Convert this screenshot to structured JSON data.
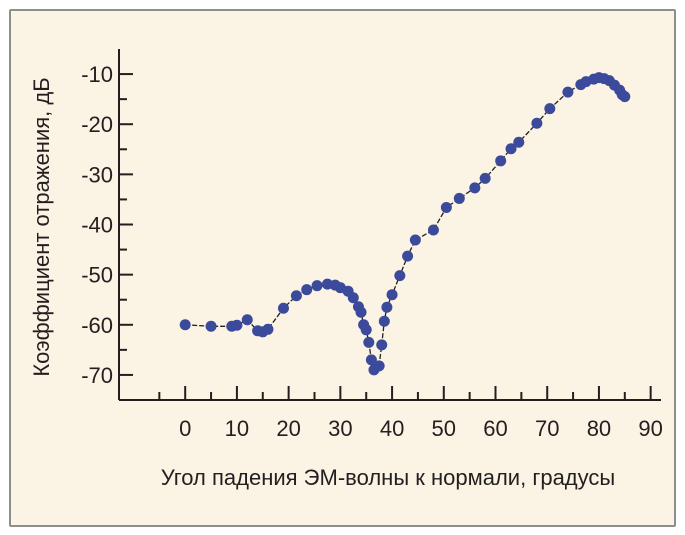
{
  "chart_data": {
    "type": "scatter",
    "title": "",
    "xlabel": "Угол падения ЭМ-волны к нормали, градусы",
    "ylabel": "Коэффициент отражения, дБ",
    "xlim": [
      -7,
      92
    ],
    "ylim": [
      -75,
      -5
    ],
    "xticks": [
      0,
      10,
      20,
      30,
      40,
      50,
      60,
      70,
      80,
      90
    ],
    "yticks": [
      -10,
      -20,
      -30,
      -40,
      -50,
      -60,
      -70
    ],
    "xtick_labels": [
      "0",
      "10",
      "20",
      "30",
      "40",
      "50",
      "60",
      "70",
      "80",
      "90"
    ],
    "ytick_labels": [
      "-10",
      "-20",
      "-30",
      "-40",
      "-50",
      "-60",
      "-70"
    ],
    "grid": false,
    "connected_line": true,
    "marker_color": "#3b4a9a",
    "line_color": "#231f20",
    "series": [
      {
        "x": [
          0,
          5,
          9,
          10,
          12,
          14,
          15,
          16,
          19,
          21.5,
          23.5,
          25.5,
          27.5,
          29,
          30,
          31.5,
          32.5,
          33.5,
          34,
          34.5,
          35,
          35.5,
          36,
          36.5,
          37.5,
          38,
          38.5,
          39,
          40,
          41.5,
          43,
          44.5,
          48,
          50.5,
          53,
          56,
          58,
          61,
          63,
          64.5,
          68,
          70.5,
          74,
          76.5,
          77.5,
          79,
          80,
          81,
          82,
          83,
          84,
          84.5,
          85
        ],
        "y": [
          -60,
          -60.3,
          -60.3,
          -60.1,
          -59,
          -61.2,
          -61.4,
          -60.9,
          -56.7,
          -54.2,
          -53,
          -52.2,
          -51.9,
          -52.1,
          -52.6,
          -53.3,
          -54.6,
          -56.4,
          -57.5,
          -60,
          -61,
          -63.5,
          -67,
          -69,
          -68.2,
          -64,
          -59.3,
          -56.5,
          -54,
          -50.2,
          -46.3,
          -43.1,
          -41.1,
          -36.6,
          -34.8,
          -32.7,
          -30.8,
          -27.3,
          -24.9,
          -23.6,
          -19.8,
          -16.9,
          -13.6,
          -12.1,
          -11.5,
          -11,
          -10.7,
          -10.9,
          -11.3,
          -12.2,
          -13.2,
          -14.1,
          -14.5
        ]
      }
    ]
  }
}
